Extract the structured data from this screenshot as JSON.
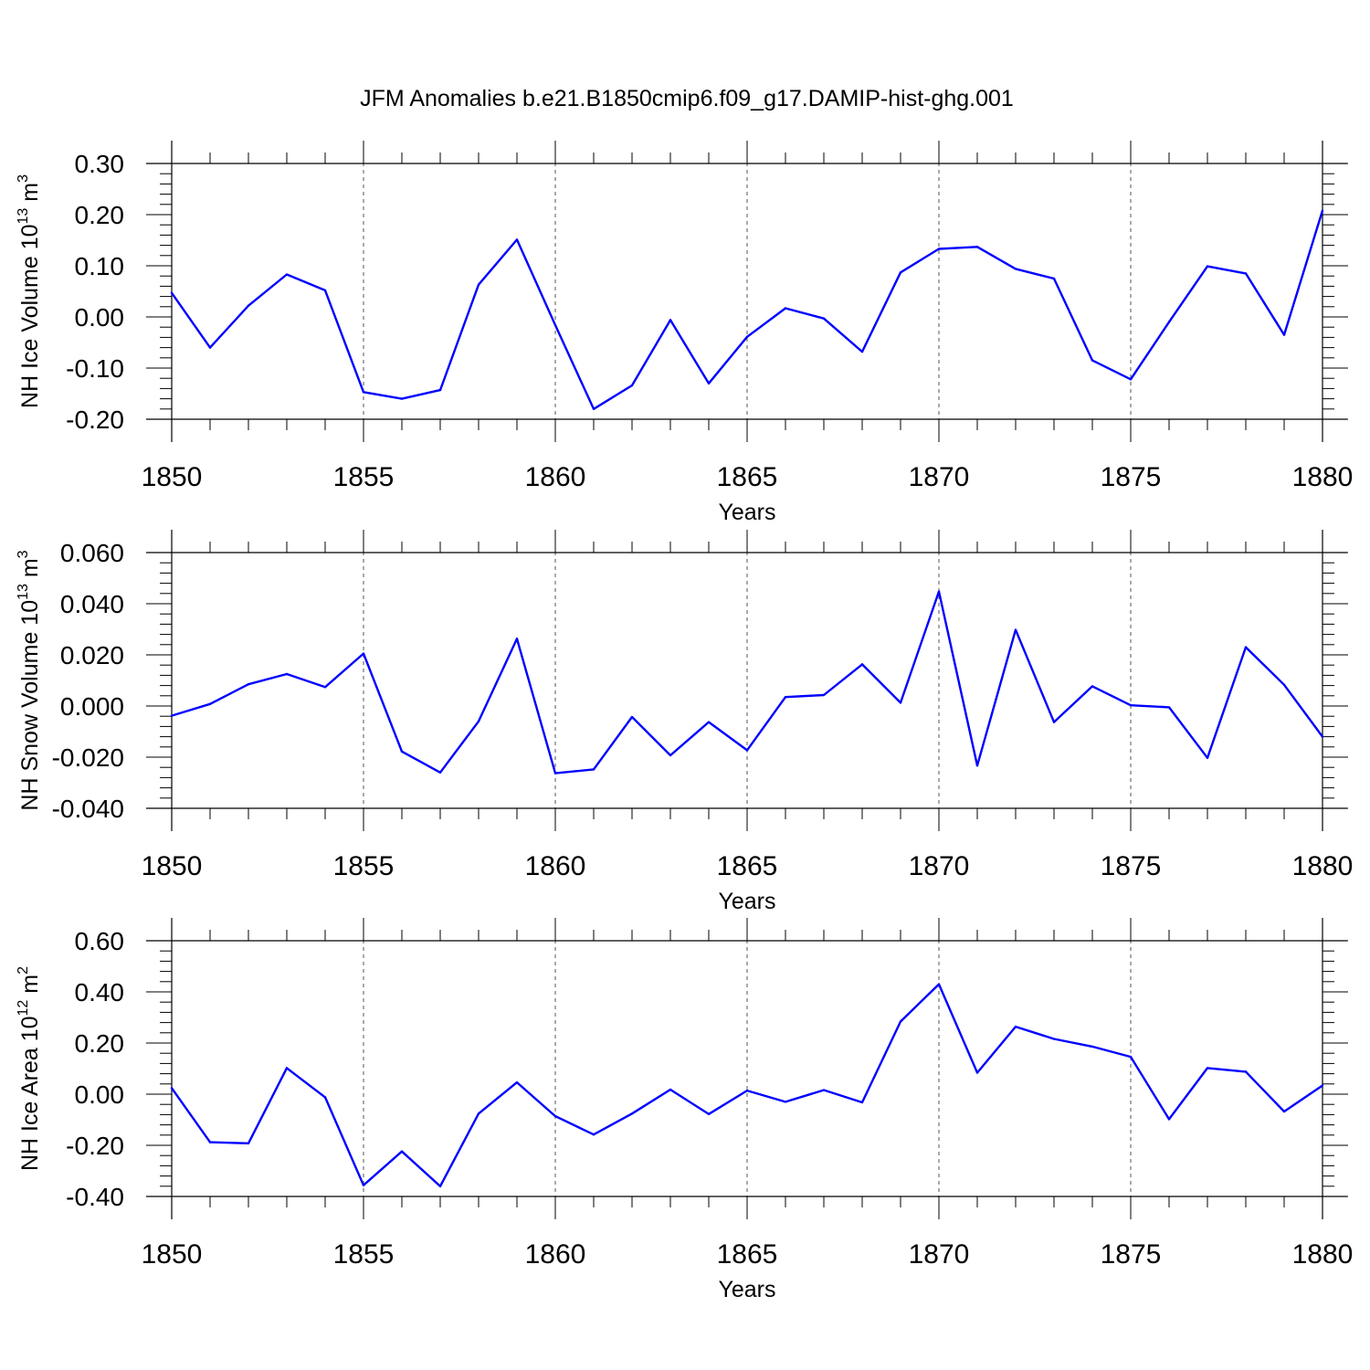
{
  "title": "JFM Anomalies b.e21.B1850cmip6.f09_g17.DAMIP-hist-ghg.001",
  "colors": {
    "series": "#0000ff",
    "axis": "#000000",
    "grid": "#555555"
  },
  "chart_data": [
    {
      "type": "line",
      "ylabel": "NH Ice Volume 10",
      "ylabel_exp": "13",
      "ylabel_unit": " m",
      "ylabel_unit_exp": "3",
      "xlabel": "Years",
      "xlim": [
        1850,
        1880
      ],
      "ylim": [
        -0.2,
        0.3
      ],
      "yticks": [
        -0.2,
        -0.1,
        0.0,
        0.1,
        0.2,
        0.3
      ],
      "ytick_labels": [
        "-0.20",
        "-0.10",
        "0.00",
        "0.10",
        "0.20",
        "0.30"
      ],
      "xticks": [
        1850,
        1855,
        1860,
        1865,
        1870,
        1875,
        1880
      ],
      "xtick_labels": [
        "1850",
        "1855",
        "1860",
        "1865",
        "1870",
        "1875",
        "1880"
      ],
      "grid": "dashed vertical at major x ticks",
      "x": [
        1850,
        1851,
        1852,
        1853,
        1854,
        1855,
        1856,
        1857,
        1858,
        1859,
        1860,
        1861,
        1862,
        1863,
        1864,
        1865,
        1866,
        1867,
        1868,
        1869,
        1870,
        1871,
        1872,
        1873,
        1874,
        1875,
        1876,
        1877,
        1878,
        1879,
        1880
      ],
      "values": [
        0.047,
        -0.06,
        0.022,
        0.083,
        0.052,
        -0.147,
        -0.16,
        -0.143,
        0.063,
        0.151,
        -0.016,
        -0.18,
        -0.134,
        -0.006,
        -0.13,
        -0.039,
        0.017,
        -0.003,
        -0.068,
        0.087,
        0.133,
        0.137,
        0.094,
        0.075,
        -0.085,
        -0.122,
        -0.01,
        0.099,
        0.085,
        -0.035,
        0.208
      ]
    },
    {
      "type": "line",
      "ylabel": "NH Snow Volume 10",
      "ylabel_exp": "13",
      "ylabel_unit": " m",
      "ylabel_unit_exp": "3",
      "xlabel": "Years",
      "xlim": [
        1850,
        1880
      ],
      "ylim": [
        -0.04,
        0.06
      ],
      "yticks": [
        -0.04,
        -0.02,
        0.0,
        0.02,
        0.04,
        0.06
      ],
      "ytick_labels": [
        "-0.040",
        "-0.020",
        "0.000",
        "0.020",
        "0.040",
        "0.060"
      ],
      "xticks": [
        1850,
        1855,
        1860,
        1865,
        1870,
        1875,
        1880
      ],
      "xtick_labels": [
        "1850",
        "1855",
        "1860",
        "1865",
        "1870",
        "1875",
        "1880"
      ],
      "grid": "dashed vertical at major x ticks",
      "x": [
        1850,
        1851,
        1852,
        1853,
        1854,
        1855,
        1856,
        1857,
        1858,
        1859,
        1860,
        1861,
        1862,
        1863,
        1864,
        1865,
        1866,
        1867,
        1868,
        1869,
        1870,
        1871,
        1872,
        1873,
        1874,
        1875,
        1876,
        1877,
        1878,
        1879,
        1880
      ],
      "values": [
        -0.0038,
        0.0008,
        0.0085,
        0.0125,
        0.0074,
        0.0205,
        -0.0178,
        -0.026,
        -0.006,
        0.0263,
        -0.0263,
        -0.0248,
        -0.0043,
        -0.0193,
        -0.0063,
        -0.0173,
        0.0035,
        0.0043,
        0.0163,
        0.0013,
        0.0448,
        -0.0233,
        0.0298,
        -0.0063,
        0.0077,
        0.0003,
        -0.0005,
        -0.0203,
        0.023,
        0.0083,
        -0.012
      ]
    },
    {
      "type": "line",
      "ylabel": "NH Ice Area 10",
      "ylabel_exp": "12",
      "ylabel_unit": " m",
      "ylabel_unit_exp": "2",
      "xlabel": "Years",
      "xlim": [
        1850,
        1880
      ],
      "ylim": [
        -0.4,
        0.6
      ],
      "yticks": [
        -0.4,
        -0.2,
        0.0,
        0.2,
        0.4,
        0.6
      ],
      "ytick_labels": [
        "-0.40",
        "-0.20",
        "0.00",
        "0.20",
        "0.40",
        "0.60"
      ],
      "xticks": [
        1850,
        1855,
        1860,
        1865,
        1870,
        1875,
        1880
      ],
      "xtick_labels": [
        "1850",
        "1855",
        "1860",
        "1865",
        "1870",
        "1875",
        "1880"
      ],
      "grid": "dashed vertical at major x ticks",
      "x": [
        1850,
        1851,
        1852,
        1853,
        1854,
        1855,
        1856,
        1857,
        1858,
        1859,
        1860,
        1861,
        1862,
        1863,
        1864,
        1865,
        1866,
        1867,
        1868,
        1869,
        1870,
        1871,
        1872,
        1873,
        1874,
        1875,
        1876,
        1877,
        1878,
        1879,
        1880
      ],
      "values": [
        0.024,
        -0.188,
        -0.192,
        0.102,
        -0.012,
        -0.356,
        -0.224,
        -0.36,
        -0.076,
        0.046,
        -0.086,
        -0.158,
        -0.076,
        0.018,
        -0.078,
        0.014,
        -0.03,
        0.016,
        -0.032,
        0.284,
        0.43,
        0.084,
        0.264,
        0.216,
        0.186,
        0.146,
        -0.098,
        0.102,
        0.088,
        -0.068,
        0.034
      ]
    }
  ]
}
